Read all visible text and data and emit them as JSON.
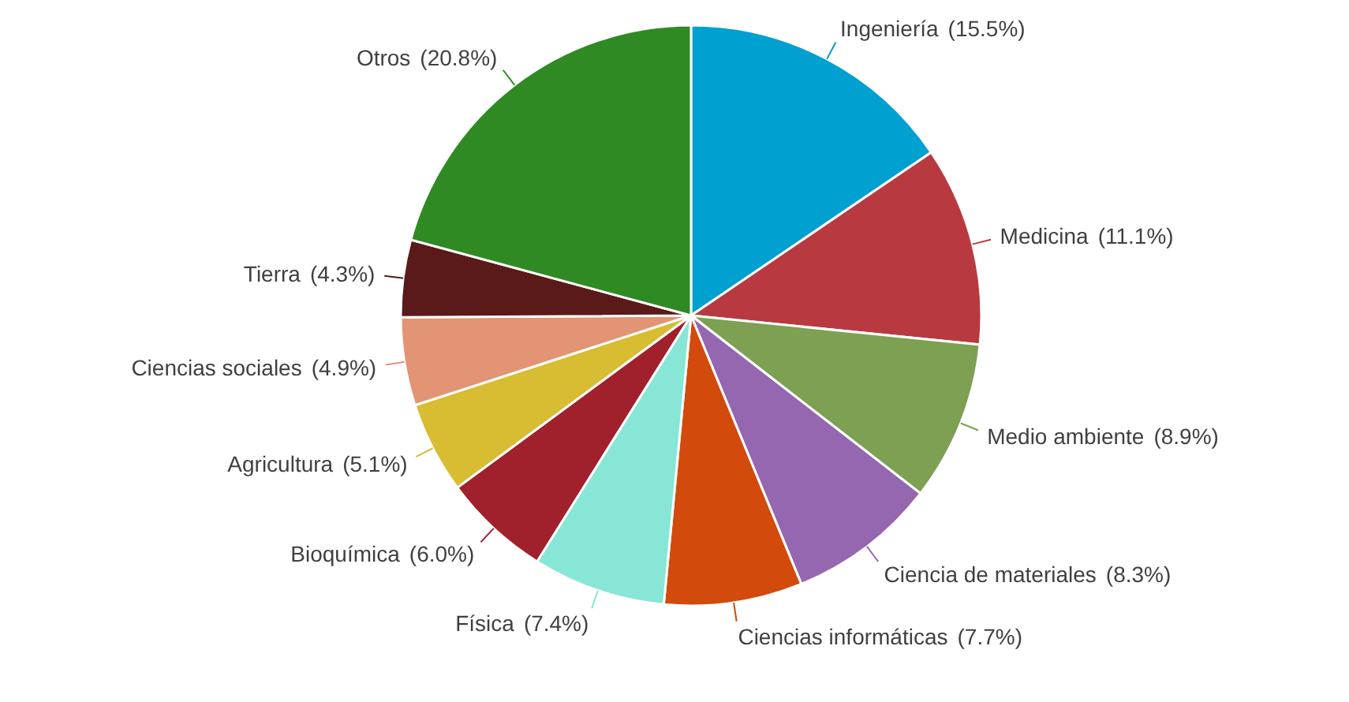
{
  "chart_data": {
    "type": "pie",
    "categories": [
      "Ingeniería",
      "Medicina",
      "Medio ambiente",
      "Ciencia de materiales",
      "Ciencias informáticas",
      "Física",
      "Bioquímica",
      "Agricultura",
      "Ciencias sociales",
      "Tierra",
      "Otros"
    ],
    "values": [
      15.5,
      11.1,
      8.9,
      8.3,
      7.7,
      7.4,
      6.0,
      5.1,
      4.9,
      4.3,
      20.8
    ],
    "value_labels": [
      "(15.5%)",
      "(11.1%)",
      "(8.9%)",
      "(8.3%)",
      "(7.7%)",
      "(7.4%)",
      "(6.0%)",
      "(5.1%)",
      "(4.9%)",
      "(4.3%)",
      "(20.8%)"
    ],
    "colors": [
      "#00a0d0",
      "#b83a40",
      "#7da052",
      "#9467b0",
      "#d24a0c",
      "#88e6d6",
      "#a0202c",
      "#d8bc32",
      "#e29474",
      "#5a1a1a",
      "#2f8a24"
    ]
  }
}
